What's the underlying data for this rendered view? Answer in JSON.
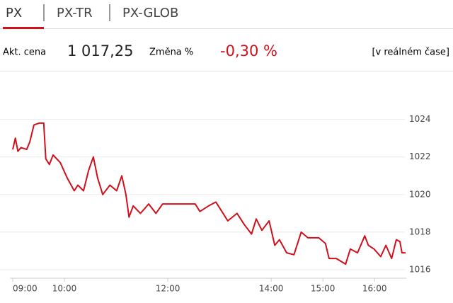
{
  "tabs": [
    "PX",
    "PX-TR",
    "PX-GLOB"
  ],
  "price_label": "Akt. cena",
  "price": "1 017,25",
  "change_label": "Změna %",
  "change": "-0,30 %",
  "realtime": "[v reálném čase]",
  "chart_data": {
    "type": "line",
    "color": "#d0101b",
    "grid": true,
    "x": [
      9.0,
      9.05,
      9.1,
      9.16,
      9.27,
      9.33,
      9.41,
      9.51,
      9.6,
      9.64,
      9.71,
      9.78,
      9.92,
      10.05,
      10.19,
      10.26,
      10.37,
      10.47,
      10.56,
      10.64,
      10.74,
      10.88,
      11.01,
      11.11,
      11.19,
      11.25,
      11.33,
      11.47,
      11.63,
      11.77,
      11.9,
      12.11,
      12.32,
      12.53,
      12.62,
      12.79,
      12.93,
      13.07,
      13.16,
      13.34,
      13.48,
      13.62,
      13.71,
      13.82,
      13.96,
      14.07,
      14.16,
      14.3,
      14.44,
      14.58,
      14.71,
      14.92,
      15.05,
      15.12,
      15.26,
      15.44,
      15.53,
      15.67,
      15.81,
      15.88,
      15.99,
      16.12,
      16.22,
      16.33,
      16.42,
      16.49,
      16.53,
      16.6
    ],
    "values": [
      1022.4,
      1023.0,
      1022.3,
      1022.5,
      1022.4,
      1022.8,
      1023.7,
      1023.8,
      1023.8,
      1021.9,
      1021.6,
      1022.1,
      1021.7,
      1020.9,
      1020.2,
      1020.5,
      1020.2,
      1021.3,
      1022.0,
      1020.9,
      1020.0,
      1020.5,
      1020.2,
      1021.0,
      1020.0,
      1018.8,
      1019.4,
      1019.0,
      1019.5,
      1019.0,
      1019.5,
      1019.5,
      1019.5,
      1019.5,
      1019.1,
      1019.4,
      1019.6,
      1019.0,
      1018.6,
      1019.0,
      1018.4,
      1017.9,
      1018.7,
      1018.1,
      1018.6,
      1017.3,
      1017.6,
      1016.9,
      1016.8,
      1018.0,
      1017.7,
      1017.7,
      1017.4,
      1016.6,
      1016.6,
      1016.3,
      1017.1,
      1016.9,
      1017.8,
      1017.3,
      1017.1,
      1016.7,
      1017.3,
      1016.6,
      1017.6,
      1017.5,
      1016.9,
      1016.9
    ],
    "xlim": [
      9,
      16.6
    ],
    "xticks": [
      {
        "value": 9,
        "label": "09:00"
      },
      {
        "value": 10,
        "label": "10:00"
      },
      {
        "value": 12,
        "label": "12:00"
      },
      {
        "value": 14,
        "label": "14:00"
      },
      {
        "value": 15,
        "label": "15:00"
      },
      {
        "value": 16,
        "label": "16:00"
      }
    ],
    "ylim": [
      1015.55,
      1024.7
    ],
    "yticks": [
      1016,
      1018,
      1020,
      1022,
      1024
    ]
  }
}
